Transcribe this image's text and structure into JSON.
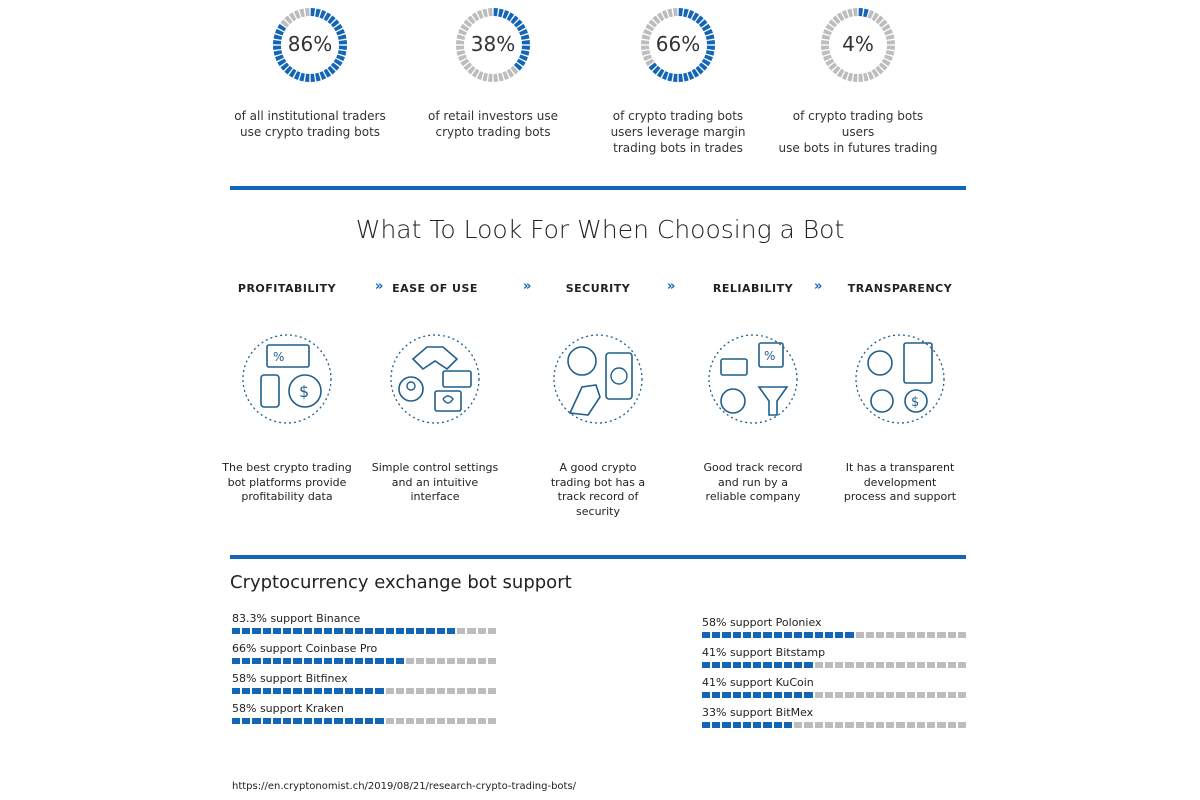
{
  "stats": [
    {
      "pct_label": "86%",
      "value": 86,
      "caption": [
        "of all institutional traders",
        "use crypto trading bots"
      ]
    },
    {
      "pct_label": "38%",
      "value": 38,
      "caption": [
        "of retail investors use",
        "crypto trading bots"
      ]
    },
    {
      "pct_label": "66%",
      "value": 66,
      "caption": [
        "of crypto trading bots",
        "users leverage margin",
        "trading bots in trades"
      ]
    },
    {
      "pct_label": "4%",
      "value": 4,
      "caption": [
        "of crypto trading bots",
        "users",
        "use bots in futures trading"
      ]
    }
  ],
  "choosing": {
    "title": "What To Look For When Choosing a Bot",
    "chevron": "»",
    "columns": [
      {
        "label": "PROFITABILITY",
        "icon": "profitability-icon",
        "desc": [
          "The best crypto trading",
          "bot platforms provide",
          "profitability data"
        ]
      },
      {
        "label": "EASE OF USE",
        "icon": "handshake-icon",
        "desc": [
          "Simple control settings",
          "and an intuitive",
          "interface"
        ]
      },
      {
        "label": "SECURITY",
        "icon": "security-icon",
        "desc": [
          "A good crypto",
          "trading bot has a",
          "track record of",
          "security"
        ]
      },
      {
        "label": "RELIABILITY",
        "icon": "reliability-icon",
        "desc": [
          "Good track record",
          "and run by a",
          "reliable company"
        ]
      },
      {
        "label": "TRANSPARENCY",
        "icon": "transparency-icon",
        "desc": [
          "It has a transparent",
          "development",
          "process and support"
        ]
      }
    ]
  },
  "exchange": {
    "title": "Cryptocurrency exchange bot support",
    "left": [
      {
        "label": "83.3% support Binance",
        "value": 83.3
      },
      {
        "label": "66% support Coinbase Pro",
        "value": 66
      },
      {
        "label": "58% support Bitfinex",
        "value": 58
      },
      {
        "label": "58% support Kraken",
        "value": 58
      }
    ],
    "right": [
      {
        "label": "58% support Poloniex",
        "value": 58
      },
      {
        "label": "41% support Bitstamp",
        "value": 41
      },
      {
        "label": "41% support KuCoin",
        "value": 41
      },
      {
        "label": "33% support BitMex",
        "value": 33
      }
    ]
  },
  "source": "https://en.cryptonomist.ch/2019/08/21/research-crypto-trading-bots/",
  "colors": {
    "accent": "#1266b5",
    "inactive": "#bdbdbd"
  }
}
